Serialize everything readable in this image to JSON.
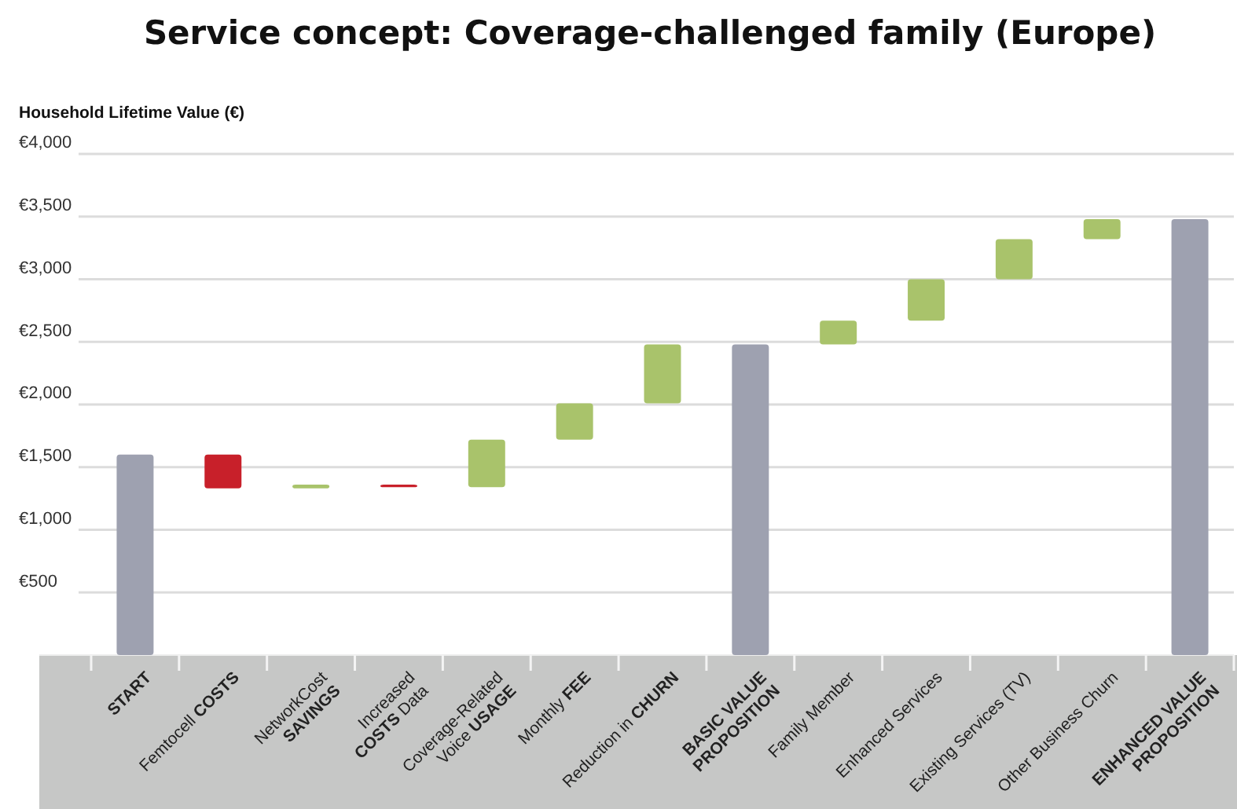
{
  "chart_data": {
    "type": "bar",
    "title": "Service concept: Coverage-challenged family (Europe)",
    "ylabel": "Household Lifetime Value (€)",
    "categories": [
      "START",
      "Femtocell COSTS",
      "NetworkCost\nSAVINGS",
      "Increased\nCOSTS Data",
      "Coverage-Related\nVoice USAGE",
      "Monthly FEE",
      "Reduction in CHURN",
      "BASIC VALUE\nPROPOSITION",
      "Family Member",
      "Enhanced Services",
      "Existing Services (TV)",
      "Other Business Churn",
      "ENHANCED VALUE\nPROPOSITION"
    ],
    "values": [
      1600,
      -270,
      30,
      -20,
      380,
      290,
      470,
      2480,
      190,
      330,
      320,
      160,
      3480
    ],
    "base": [
      0,
      1600,
      1330,
      1360,
      1340,
      1720,
      2010,
      0,
      2480,
      2670,
      3000,
      3320,
      0
    ],
    "colors": [
      "#9ea1b0",
      "#c8202a",
      "#a9c36b",
      "#c8202a",
      "#a9c36b",
      "#a9c36b",
      "#a9c36b",
      "#9ea1b0",
      "#a9c36b",
      "#a9c36b",
      "#a9c36b",
      "#a9c36b",
      "#9ea1b0"
    ],
    "ylim": [
      0,
      4000
    ],
    "yticks": [
      {
        "value": 500,
        "label": "€500"
      },
      {
        "value": 1000,
        "label": "€1,000"
      },
      {
        "value": 1500,
        "label": "€1,500"
      },
      {
        "value": 2000,
        "label": "€2,000"
      },
      {
        "value": 2500,
        "label": "€2,500"
      },
      {
        "value": 3000,
        "label": "€3,000"
      },
      {
        "value": 3500,
        "label": "€3,500"
      },
      {
        "value": 4000,
        "label": "€4,000"
      }
    ],
    "grid": "y"
  }
}
